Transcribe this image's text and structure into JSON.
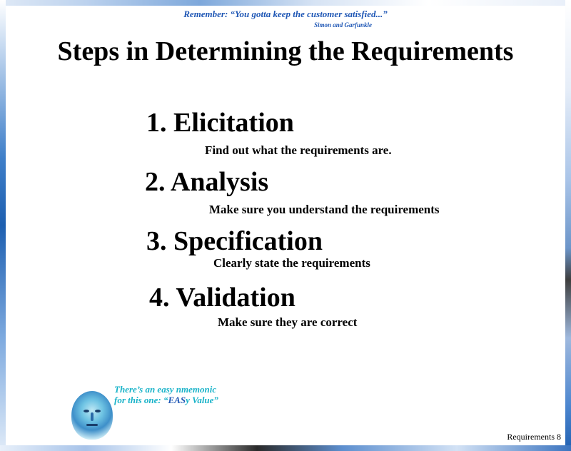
{
  "quote": {
    "text": "Remember: “You gotta keep the customer satisfied...”",
    "author": "Simon and Garfunkle"
  },
  "title": "Steps in Determining the Requirements",
  "steps": [
    {
      "heading": "1. Elicitation",
      "description": "Find out what the requirements are."
    },
    {
      "heading": "2. Analysis",
      "description": "Make sure you understand the requirements"
    },
    {
      "heading": "3. Specification",
      "description": "Clearly state the requirements"
    },
    {
      "heading": "4. Validation",
      "description": "Make sure they are correct"
    }
  ],
  "mnemonic": {
    "line1": "There’s an easy nmemonic",
    "line2_prefix": "for this one: “",
    "line2_highlight": "EAS",
    "line2_suffix": "y Value”"
  },
  "footer": {
    "slide_number": "Requirements 8"
  },
  "colors": {
    "quote": "#1f57b5",
    "mnemonic": "#19b3c9",
    "mnemonic_highlight": "#1f57b5",
    "text": "#000000"
  }
}
